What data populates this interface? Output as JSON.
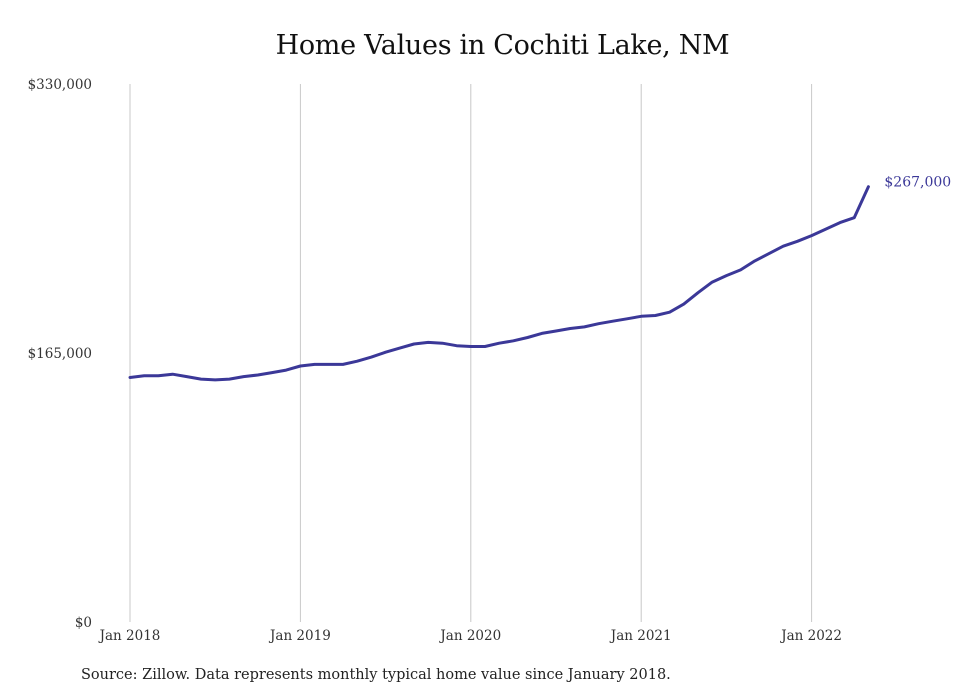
{
  "chart_data": {
    "type": "line",
    "title": "Home Values in Cochiti Lake, NM",
    "xlabel": "",
    "ylabel": "",
    "ylim": [
      0,
      330000
    ],
    "y_ticks": [
      {
        "value": 0,
        "label": "$0"
      },
      {
        "value": 165000,
        "label": "$165,000"
      },
      {
        "value": 330000,
        "label": "$330,000"
      }
    ],
    "x_ticks": [
      {
        "index": 0,
        "label": "Jan 2018"
      },
      {
        "index": 12,
        "label": "Jan 2019"
      },
      {
        "index": 24,
        "label": "Jan 2020"
      },
      {
        "index": 36,
        "label": "Jan 2021"
      },
      {
        "index": 48,
        "label": "Jan 2022"
      }
    ],
    "x_range": [
      "2018-01",
      "2022-05"
    ],
    "grid": "vertical lines at year ticks",
    "line_color": "#3b3898",
    "end_label": "$267,000",
    "series": [
      {
        "x": [
          "2018-01",
          "2018-02",
          "2018-03",
          "2018-04",
          "2018-05",
          "2018-06",
          "2018-07",
          "2018-08",
          "2018-09",
          "2018-10",
          "2018-11",
          "2018-12",
          "2019-01",
          "2019-02",
          "2019-03",
          "2019-04",
          "2019-05",
          "2019-06",
          "2019-07",
          "2019-08",
          "2019-09",
          "2019-10",
          "2019-11",
          "2019-12",
          "2020-01",
          "2020-02",
          "2020-03",
          "2020-04",
          "2020-05",
          "2020-06",
          "2020-07",
          "2020-08",
          "2020-09",
          "2020-10",
          "2020-11",
          "2020-12",
          "2021-01",
          "2021-02",
          "2021-03",
          "2021-04",
          "2021-05",
          "2021-06",
          "2021-07",
          "2021-08",
          "2021-09",
          "2021-10",
          "2021-11",
          "2021-12",
          "2022-01",
          "2022-02",
          "2022-03",
          "2022-04",
          "2022-05"
        ],
        "values": [
          150000,
          151000,
          151000,
          152000,
          150500,
          149000,
          148500,
          149000,
          150500,
          151500,
          153000,
          154500,
          157000,
          158000,
          158000,
          158000,
          160000,
          162500,
          165500,
          168000,
          170500,
          171500,
          171000,
          169500,
          169000,
          169000,
          171000,
          172500,
          174500,
          177000,
          178500,
          180000,
          181000,
          183000,
          184500,
          186000,
          187500,
          188000,
          190000,
          195000,
          202000,
          208500,
          212500,
          216000,
          221500,
          226000,
          230500,
          233500,
          237000,
          241000,
          245000,
          248000,
          267000
        ]
      }
    ],
    "source": "Source: Zillow. Data represents monthly typical home value since January 2018."
  }
}
